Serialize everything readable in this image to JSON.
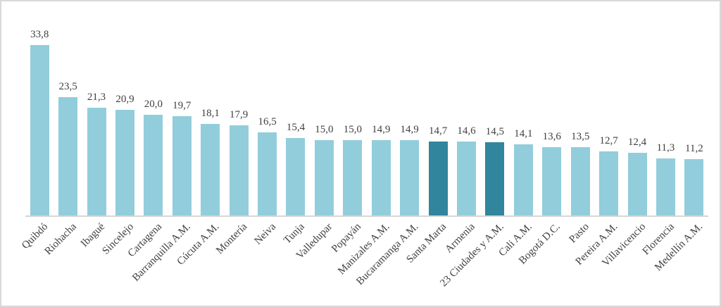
{
  "chart_data": {
    "type": "bar",
    "title": "",
    "xlabel": "",
    "ylabel": "",
    "categories": [
      "Quibdó",
      "Riohacha",
      "Ibagué",
      "Sincelejo",
      "Cartagena",
      "Barranquilla A.M.",
      "Cúcuta A.M.",
      "Montería",
      "Neiva",
      "Tunja",
      "Valledupar",
      "Popayán",
      "Manizales A.M.",
      "Bucaramanga A.M.",
      "Santa Marta",
      "Armenia",
      "23 Ciudades y A.M.",
      "Cali A.M.",
      "Bogotá D.C.",
      "Pasto",
      "Pereira A.M.",
      "Villavicencio",
      "Florencia",
      "Medellín A.M."
    ],
    "values": [
      33.8,
      23.5,
      21.3,
      20.9,
      20.0,
      19.7,
      18.1,
      17.9,
      16.5,
      15.4,
      15.0,
      15.0,
      14.9,
      14.9,
      14.7,
      14.6,
      14.5,
      14.1,
      13.6,
      13.5,
      12.7,
      12.4,
      11.3,
      11.2
    ],
    "value_labels": [
      "33,8",
      "23,5",
      "21,3",
      "20,9",
      "20,0",
      "19,7",
      "18,1",
      "17,9",
      "16,5",
      "15,4",
      "15,0",
      "15,0",
      "14,9",
      "14,9",
      "14,7",
      "14,6",
      "14,5",
      "14,1",
      "13,6",
      "13,5",
      "12,7",
      "12,4",
      "11,3",
      "11,2"
    ],
    "highlighted_categories": [
      "Santa Marta",
      "23 Ciudades y A.M."
    ],
    "highlight_indices": [
      14,
      16
    ],
    "decimal_separator": ",",
    "ylim": [
      0,
      34
    ],
    "grid": false,
    "legend": false,
    "colors": {
      "bar": "#92cddc",
      "highlight": "#31859c",
      "axis_line": "#d6d6d6",
      "label_text": "#3f3f3f",
      "frame_border": "#d9d9d9",
      "background": "#ffffff"
    }
  }
}
